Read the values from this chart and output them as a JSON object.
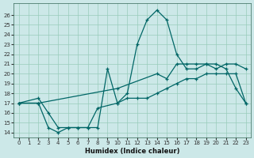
{
  "xlabel": "Humidex (Indice chaleur)",
  "bg_color": "#cce8e8",
  "grid_color": "#99ccbb",
  "line_color": "#006666",
  "xlim": [
    -0.5,
    23.5
  ],
  "ylim": [
    13.5,
    27.2
  ],
  "xticks": [
    0,
    1,
    2,
    3,
    4,
    5,
    6,
    7,
    8,
    9,
    10,
    11,
    12,
    13,
    14,
    15,
    16,
    17,
    18,
    19,
    20,
    21,
    22,
    23
  ],
  "yticks": [
    14,
    15,
    16,
    17,
    18,
    19,
    20,
    21,
    22,
    23,
    24,
    25,
    26
  ],
  "line1_x": [
    0,
    2,
    3,
    4,
    5,
    6,
    7,
    8,
    9,
    10,
    11,
    12,
    13,
    14,
    15,
    16,
    17,
    18,
    19,
    20,
    21,
    22,
    23
  ],
  "line1_y": [
    17,
    17.5,
    16,
    14.5,
    14.5,
    14.5,
    14.5,
    14.5,
    20.5,
    17,
    18,
    23,
    25.5,
    26.5,
    25.5,
    22,
    20.5,
    20.5,
    21,
    21,
    20.5,
    18.5,
    17
  ],
  "line2_x": [
    0,
    2,
    10,
    14,
    15,
    16,
    17,
    18,
    19,
    20,
    21,
    22,
    23
  ],
  "line2_y": [
    17,
    17,
    18.5,
    20,
    19.5,
    21,
    21,
    21,
    21,
    20.5,
    21,
    21,
    20.5
  ],
  "line3_x": [
    0,
    2,
    3,
    4,
    5,
    6,
    7,
    8,
    10,
    11,
    12,
    13,
    14,
    15,
    16,
    17,
    18,
    19,
    20,
    21,
    22,
    23
  ],
  "line3_y": [
    17,
    17,
    14.5,
    14,
    14.5,
    14.5,
    14.5,
    16.5,
    17,
    17.5,
    17.5,
    17.5,
    18,
    18.5,
    19,
    19.5,
    19.5,
    20,
    20,
    20,
    20,
    17
  ]
}
